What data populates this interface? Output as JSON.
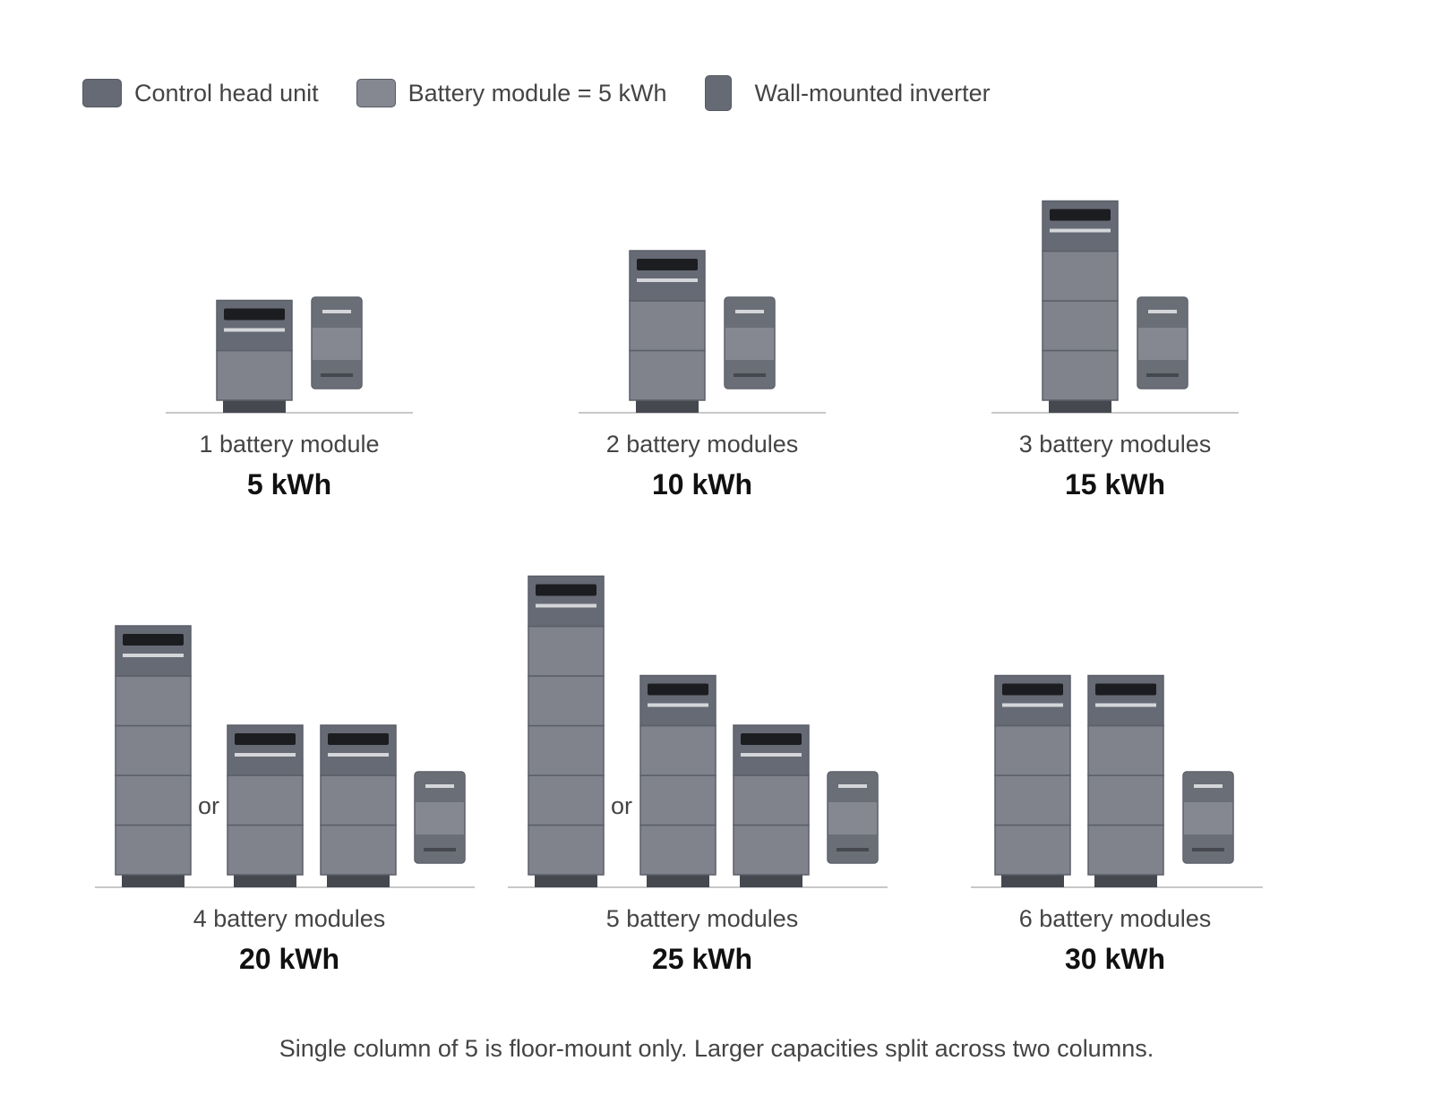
{
  "legend": {
    "control_head_unit": "Control head unit",
    "battery_module": "Battery module = 5 kWh",
    "wall_inverter": "Wall-mounted inverter"
  },
  "colors": {
    "head": "#666a74",
    "module": "#80838b",
    "module_line": "#5b5f68",
    "display": "#1c1d21",
    "highlight": "#d4d6da",
    "base": "#45484f",
    "ground": "#c8c8c8",
    "inverter_body": "#858890",
    "inverter_accent": "#6a6e77"
  },
  "configs": [
    {
      "label": "1 battery module",
      "capacity": "5 kWh",
      "columns": [
        1
      ],
      "alternate": false
    },
    {
      "label": "2 battery modules",
      "capacity": "10 kWh",
      "columns": [
        2
      ],
      "alternate": false
    },
    {
      "label": "3 battery modules",
      "capacity": "15 kWh",
      "columns": [
        3
      ],
      "alternate": false
    },
    {
      "label": "4 battery modules",
      "capacity": "20 kWh",
      "columns": [
        4,
        2,
        2
      ],
      "alternate": true,
      "or_text": "or"
    },
    {
      "label": "5 battery modules",
      "capacity": "25 kWh",
      "columns": [
        5,
        3,
        2
      ],
      "alternate": true,
      "or_text": "or"
    },
    {
      "label": "6 battery modules",
      "capacity": "30 kWh",
      "columns": [
        3,
        3
      ],
      "alternate": false
    }
  ],
  "footnote": "Single column of 5 is floor-mount only. Larger capacities split across two columns."
}
